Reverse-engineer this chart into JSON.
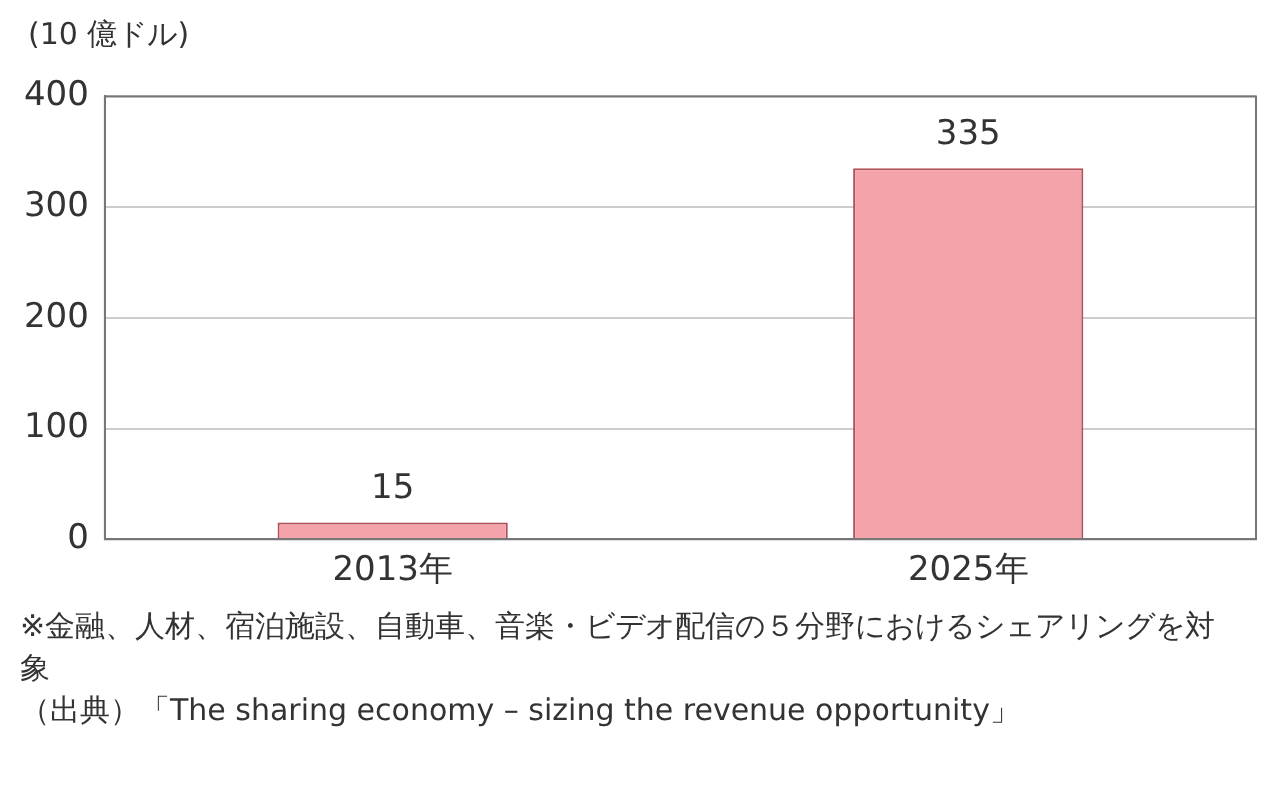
{
  "chart_data": {
    "type": "bar",
    "ylabel": "(10 億ドル)",
    "categories": [
      "2013年",
      "2025年"
    ],
    "values": [
      15,
      335
    ],
    "color": "#f4a3ab",
    "ylim": [
      0,
      400
    ],
    "yticks": [
      0,
      100,
      200,
      300,
      400
    ],
    "grid": "y",
    "data_labels": true,
    "annotations": [
      "※金融、人材、宿泊施設、自動車、音楽・ビデオ配信の５分野におけるシェアリングを対象",
      "（出典）「The sharing economy – sizing the revenue opportunity」"
    ]
  }
}
